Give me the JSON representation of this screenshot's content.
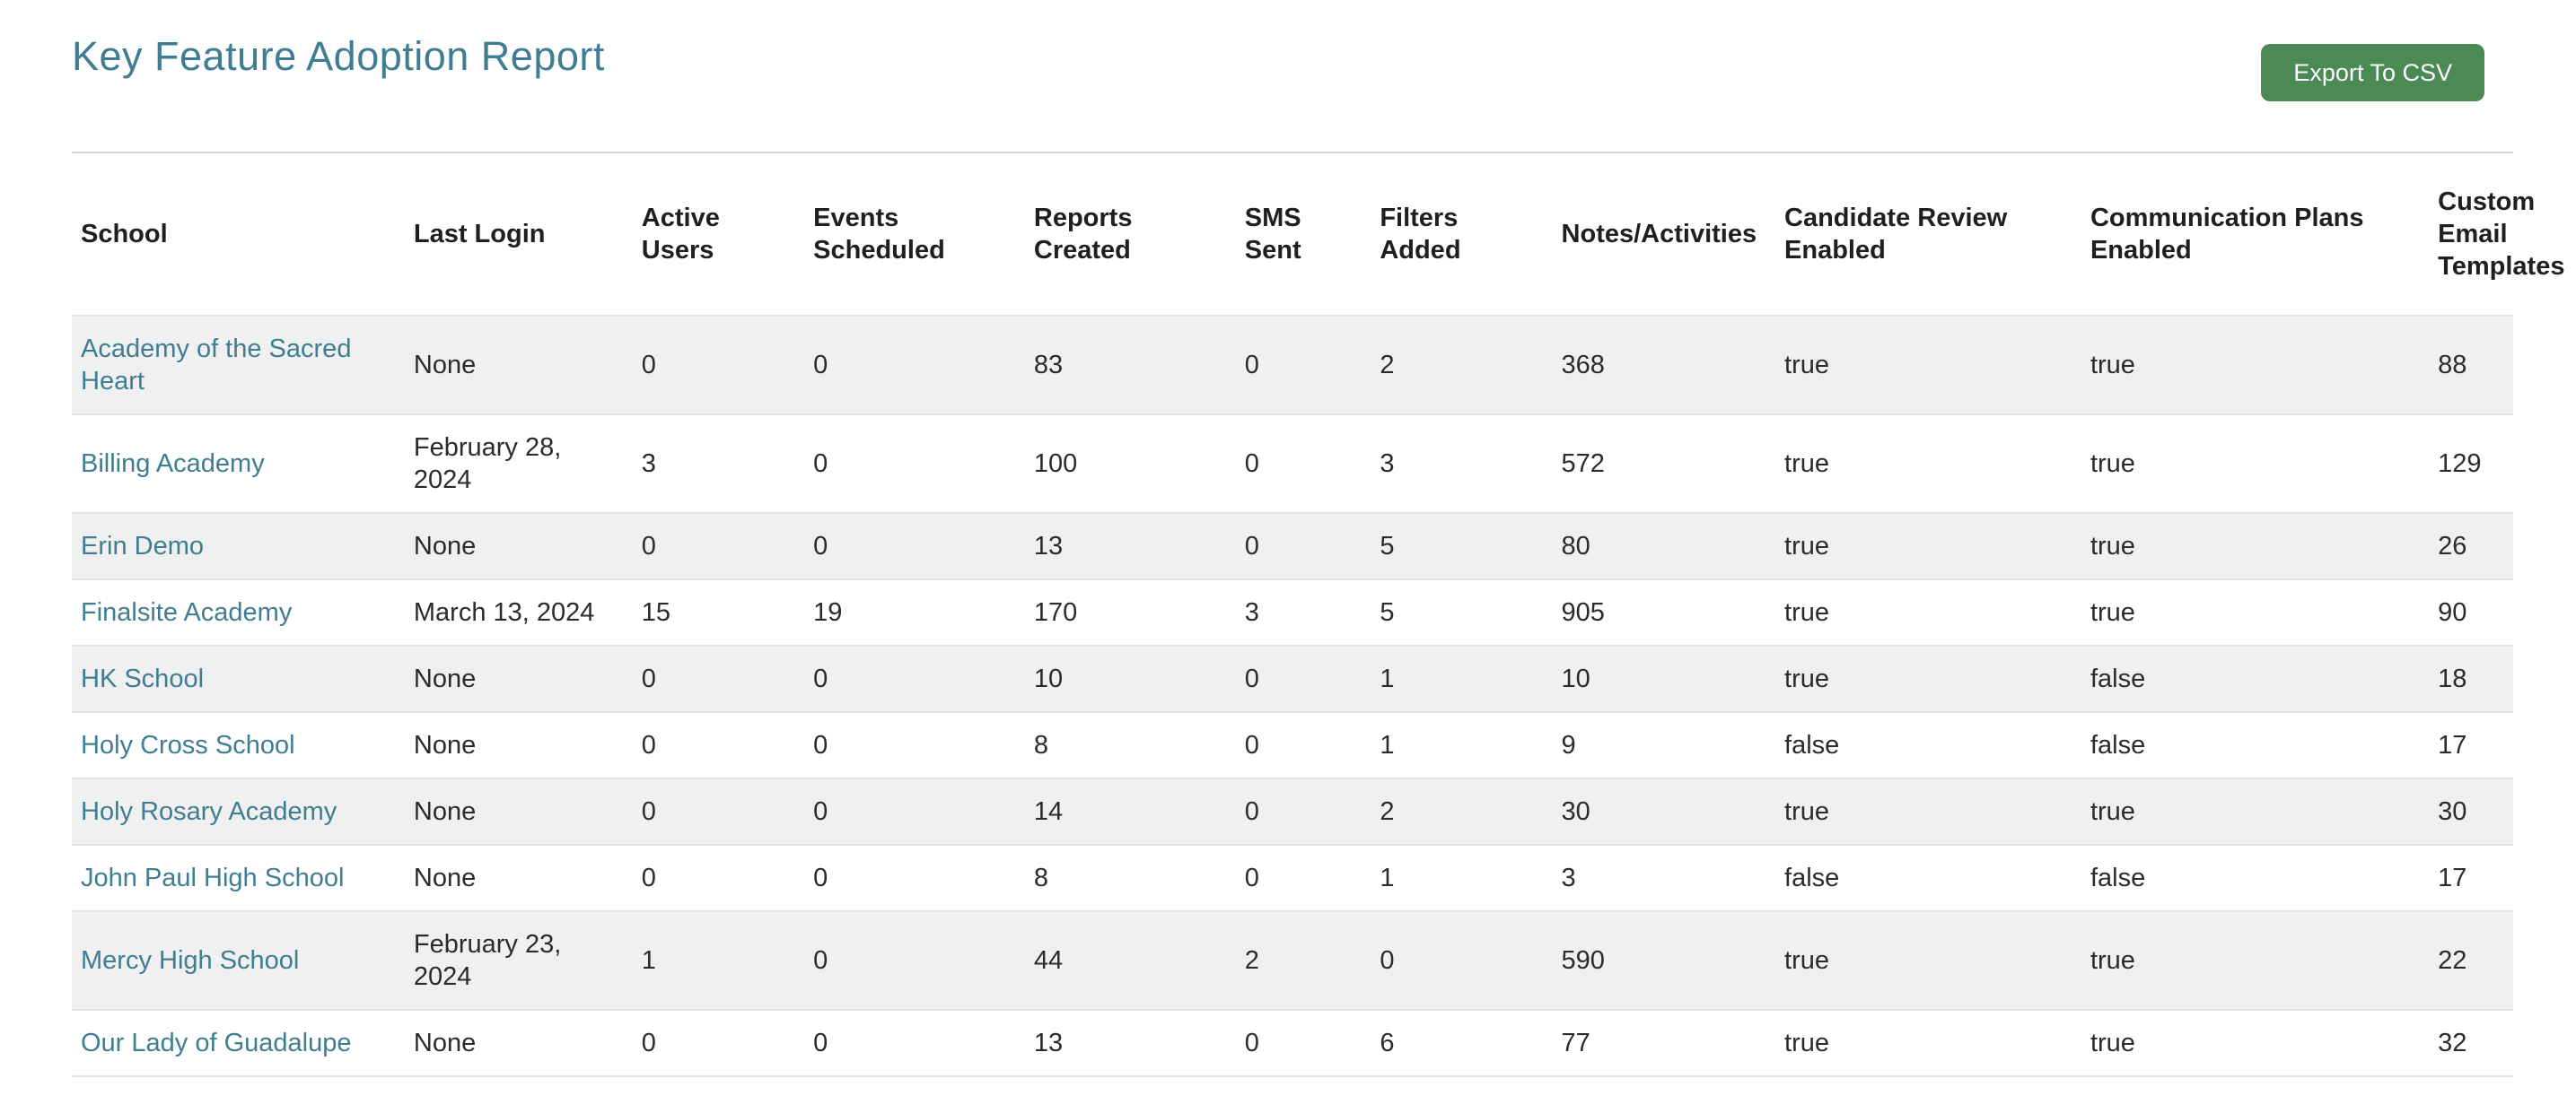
{
  "page": {
    "title": "Key Feature Adoption Report",
    "export_button_label": "Export To CSV"
  },
  "colors": {
    "accent_teal": "#3e7d92",
    "button_green": "#4b8a54",
    "row_stripe_gray": "#f0f0f0",
    "row_border_gray": "#e4e4e4",
    "header_text": "#1f1f1f"
  },
  "table": {
    "columns": [
      "School",
      "Last Login",
      "Active Users",
      "Events Scheduled",
      "Reports Created",
      "SMS Sent",
      "Filters Added",
      "Notes/Activities",
      "Candidate Review Enabled",
      "Communication Plans Enabled",
      "Custom Email Templates"
    ],
    "rows": [
      [
        "Academy of the Sacred Heart",
        "None",
        "0",
        "0",
        "83",
        "0",
        "2",
        "368",
        "true",
        "true",
        "88"
      ],
      [
        "Billing Academy",
        "February 28, 2024",
        "3",
        "0",
        "100",
        "0",
        "3",
        "572",
        "true",
        "true",
        "129"
      ],
      [
        "Erin Demo",
        "None",
        "0",
        "0",
        "13",
        "0",
        "5",
        "80",
        "true",
        "true",
        "26"
      ],
      [
        "Finalsite Academy",
        "March 13, 2024",
        "15",
        "19",
        "170",
        "3",
        "5",
        "905",
        "true",
        "true",
        "90"
      ],
      [
        "HK School",
        "None",
        "0",
        "0",
        "10",
        "0",
        "1",
        "10",
        "true",
        "false",
        "18"
      ],
      [
        "Holy Cross School",
        "None",
        "0",
        "0",
        "8",
        "0",
        "1",
        "9",
        "false",
        "false",
        "17"
      ],
      [
        "Holy Rosary Academy",
        "None",
        "0",
        "0",
        "14",
        "0",
        "2",
        "30",
        "true",
        "true",
        "30"
      ],
      [
        "John Paul High School",
        "None",
        "0",
        "0",
        "8",
        "0",
        "1",
        "3",
        "false",
        "false",
        "17"
      ],
      [
        "Mercy High School",
        "February 23, 2024",
        "1",
        "0",
        "44",
        "2",
        "0",
        "590",
        "true",
        "true",
        "22"
      ],
      [
        "Our Lady of Guadalupe",
        "None",
        "0",
        "0",
        "13",
        "0",
        "6",
        "77",
        "true",
        "true",
        "32"
      ]
    ]
  }
}
